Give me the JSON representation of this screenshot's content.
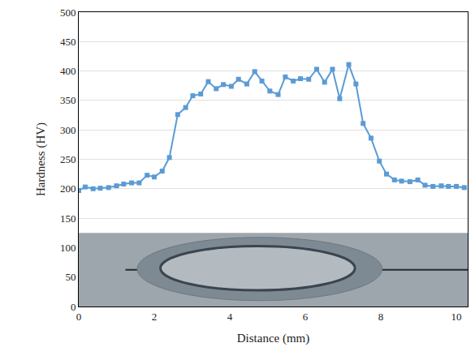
{
  "chart_data": {
    "type": "line",
    "xlabel": "Distance (mm)",
    "ylabel": "Hardness (HV)",
    "x": [
      0,
      0.17,
      0.38,
      0.57,
      0.79,
      1.0,
      1.19,
      1.4,
      1.6,
      1.81,
      2.0,
      2.21,
      2.4,
      2.62,
      2.83,
      3.02,
      3.23,
      3.43,
      3.64,
      3.83,
      4.04,
      4.23,
      4.45,
      4.66,
      4.85,
      5.06,
      5.28,
      5.47,
      5.68,
      5.87,
      6.09,
      6.3,
      6.51,
      6.72,
      6.91,
      7.15,
      7.34,
      7.53,
      7.74,
      7.96,
      8.15,
      8.36,
      8.55,
      8.77,
      8.98,
      9.17,
      9.38,
      9.6,
      9.79,
      10.0,
      10.21
    ],
    "values": [
      197,
      203,
      200,
      201,
      202,
      205,
      208,
      210,
      210,
      223,
      220,
      230,
      253,
      326,
      338,
      358,
      361,
      382,
      370,
      377,
      374,
      386,
      378,
      399,
      383,
      366,
      360,
      390,
      383,
      387,
      386,
      403,
      381,
      403,
      353,
      411,
      378,
      311,
      286,
      247,
      225,
      215,
      213,
      212,
      215,
      206,
      204,
      205,
      204,
      204,
      202
    ],
    "color": "#5b9bd5",
    "marker": "square",
    "xlim": [
      0,
      10.3
    ],
    "ylim": [
      0,
      500
    ],
    "xticks": [
      0,
      2,
      4,
      6,
      8,
      10
    ],
    "yticks": [
      0,
      50,
      100,
      150,
      200,
      250,
      300,
      350,
      400,
      450,
      500
    ],
    "grid": "y"
  }
}
